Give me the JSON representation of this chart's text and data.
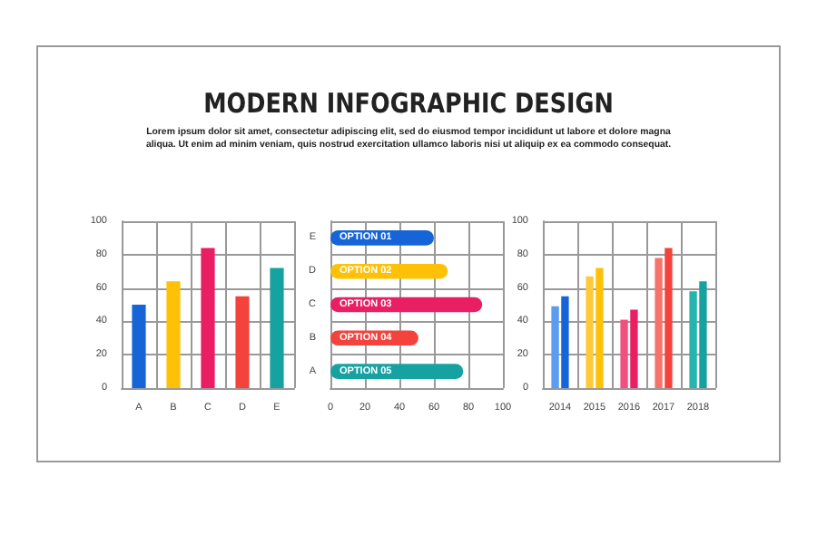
{
  "chart_data": [
    {
      "type": "bar",
      "title": "MODERN INFOGRAPHIC DESIGN",
      "subtitle": "Lorem ipsum dolor sit amet, consectetur adipiscing elit, sed do eiusmod tempor incididunt ut labore et dolore magna aliqua. Ut enim ad minim veniam, quis nostrud exercitation ullamco laboris nisi ut aliquip ex ea commodo consequat.",
      "categories": [
        "A",
        "B",
        "C",
        "D",
        "E"
      ],
      "values": [
        50,
        64,
        84,
        55,
        72
      ],
      "colors": [
        "#1565d8",
        "#ffc107",
        "#e91e63",
        "#f4433c",
        "#17a2a2"
      ],
      "ylim": [
        0,
        100
      ],
      "yticks": [
        0,
        20,
        40,
        60,
        80,
        100
      ],
      "grid": true
    },
    {
      "type": "bar",
      "orientation": "horizontal",
      "categories": [
        "E",
        "D",
        "C",
        "B",
        "A"
      ],
      "values": [
        60,
        68,
        88,
        51,
        77
      ],
      "value_labels": [
        "OPTION 01",
        "OPTION 02",
        "OPTION 03",
        "OPTION 04",
        "OPTION 05"
      ],
      "colors": [
        "#1565d8",
        "#ffc107",
        "#e91e63",
        "#f4433c",
        "#17a2a2"
      ],
      "xlim": [
        0,
        100
      ],
      "xticks": [
        0,
        20,
        40,
        60,
        80,
        100
      ],
      "grid": true
    },
    {
      "type": "bar",
      "categories": [
        "2014",
        "2015",
        "2016",
        "2017",
        "2018"
      ],
      "series": [
        {
          "colors": [
            "#5b9bf0",
            "#ffca3a",
            "#f0507e",
            "#f4736a",
            "#26b5ae"
          ],
          "values": [
            49,
            67,
            41,
            78,
            58
          ]
        },
        {
          "colors": [
            "#1565d8",
            "#ffc107",
            "#e91e63",
            "#f4433c",
            "#17a2a2"
          ],
          "values": [
            55,
            72,
            47,
            84,
            64
          ]
        }
      ],
      "ylim": [
        0,
        100
      ],
      "yticks": [
        0,
        20,
        40,
        60,
        80,
        100
      ],
      "grid": true
    }
  ]
}
